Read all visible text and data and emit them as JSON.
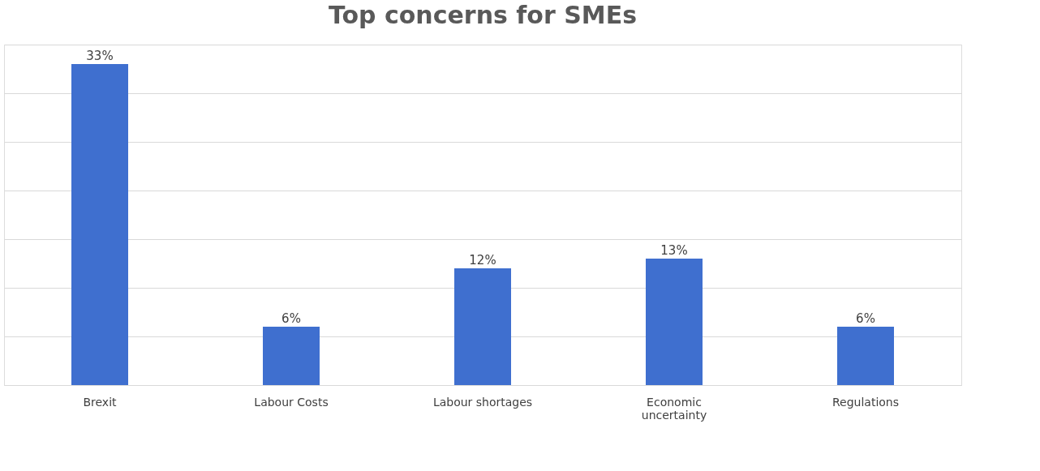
{
  "chart_data": {
    "type": "bar",
    "title": "Top concerns for SMEs",
    "categories": [
      "Brexit",
      "Labour Costs",
      "Labour shortages",
      "Economic uncertainty",
      "Regulations"
    ],
    "values": [
      33,
      6,
      12,
      13,
      6
    ],
    "color": "#3f6fcf",
    "value_labels": [
      "33%",
      "6%",
      "12%",
      "13%",
      "6%"
    ],
    "grid": "y",
    "tick_labels": "x"
  }
}
